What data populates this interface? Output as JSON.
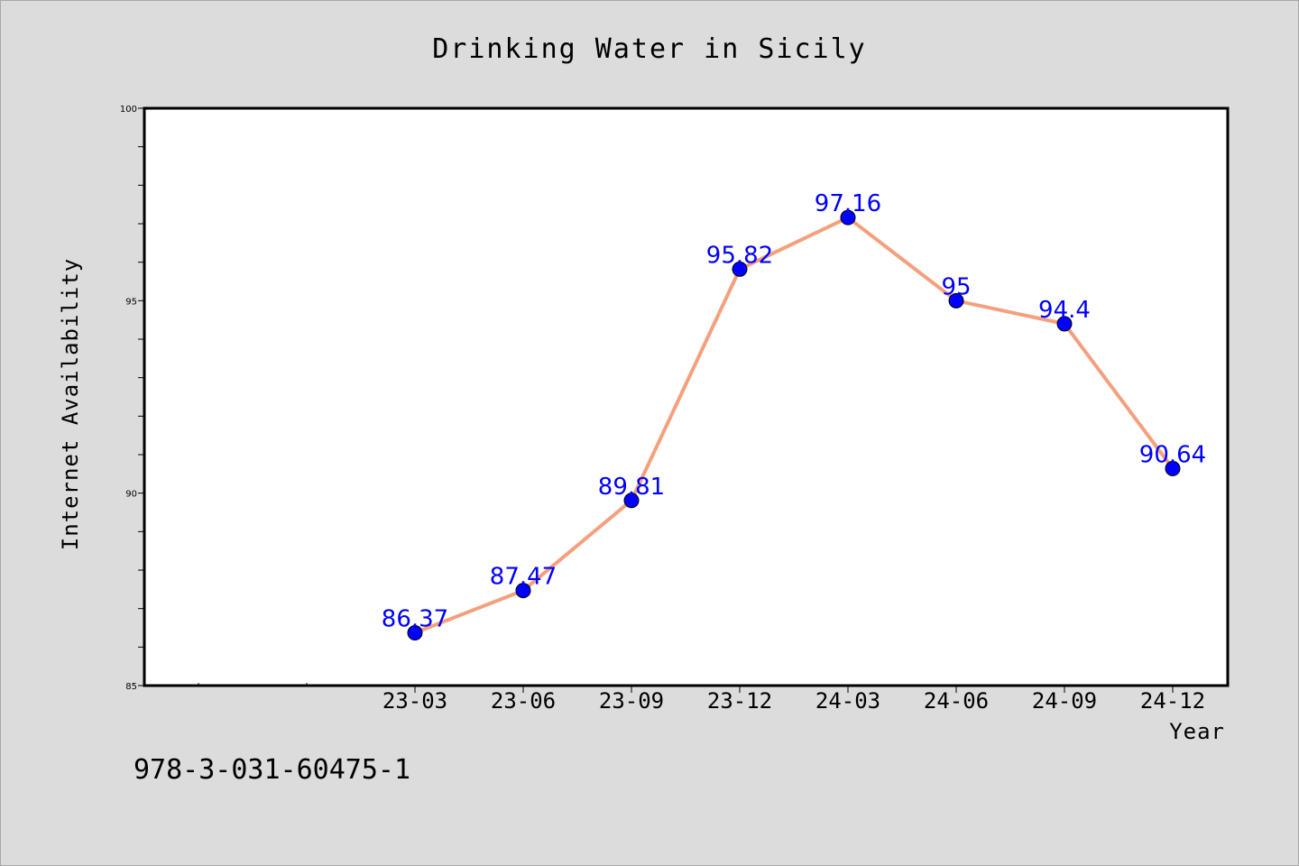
{
  "chart_data": {
    "type": "line",
    "title": "Drinking Water in Sicily",
    "xlabel": "Year",
    "ylabel": "Internet Availability",
    "categories": [
      "23-03",
      "23-06",
      "23-09",
      "23-12",
      "24-03",
      "24-06",
      "24-09",
      "24-12"
    ],
    "values": [
      86.37,
      87.47,
      89.81,
      95.82,
      97.16,
      95.0,
      94.4,
      90.64
    ],
    "data_labels": [
      "86.37",
      "87.47",
      "89.81",
      "95.82",
      "97.16",
      "95",
      "94.4",
      "90.64"
    ],
    "ylim": [
      85,
      100
    ],
    "yticks": [
      85,
      90,
      95,
      100
    ],
    "grid": false,
    "legend": "none",
    "line_color": "#f4a07c",
    "marker_color": "#0000ff",
    "label_color": "#0000ff"
  },
  "footer": {
    "isbn": "978-3-031-60475-1"
  }
}
